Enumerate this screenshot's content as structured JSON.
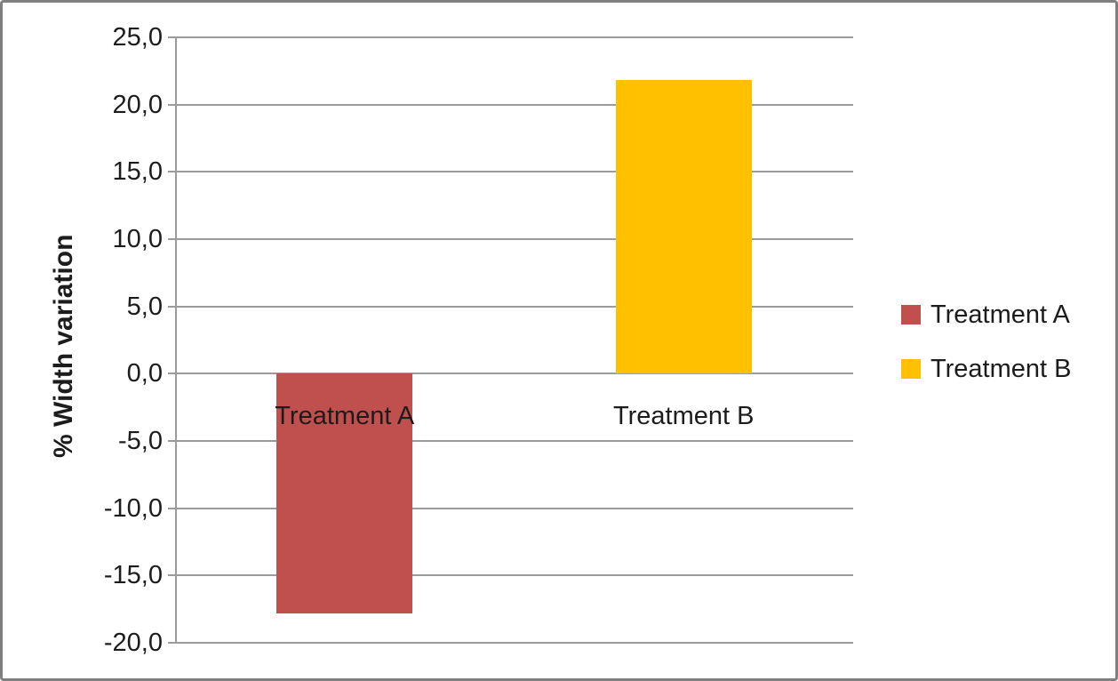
{
  "chart_data": {
    "type": "bar",
    "title": "",
    "xlabel": "",
    "ylabel": "% Width variation",
    "categories": [
      "Treatment A",
      "Treatment B"
    ],
    "values": [
      -17.8,
      21.8
    ],
    "bar_colors": [
      "#C0504D",
      "#FFC000"
    ],
    "ylim": [
      -20,
      25
    ],
    "ytick_step": 5,
    "ytick_labels": [
      "25,0",
      "20,0",
      "15,0",
      "10,0",
      "5,0",
      "0,0",
      "-5,0",
      "-10,0",
      "-15,0",
      "-20,0"
    ],
    "ytick_values": [
      25,
      20,
      15,
      10,
      5,
      0,
      -5,
      -10,
      -15,
      -20
    ],
    "decimal_separator": ",",
    "grid": true,
    "legend": {
      "position": "right",
      "items": [
        {
          "label": "Treatment A",
          "color": "#C0504D"
        },
        {
          "label": "Treatment B",
          "color": "#FFC000"
        }
      ]
    },
    "colors": {
      "gridline": "#9b9b9b",
      "axis_line": "#9b9b9b",
      "text": "#1c1c1c",
      "frame_border": "#7f7f7f",
      "background": "#ffffff"
    }
  }
}
